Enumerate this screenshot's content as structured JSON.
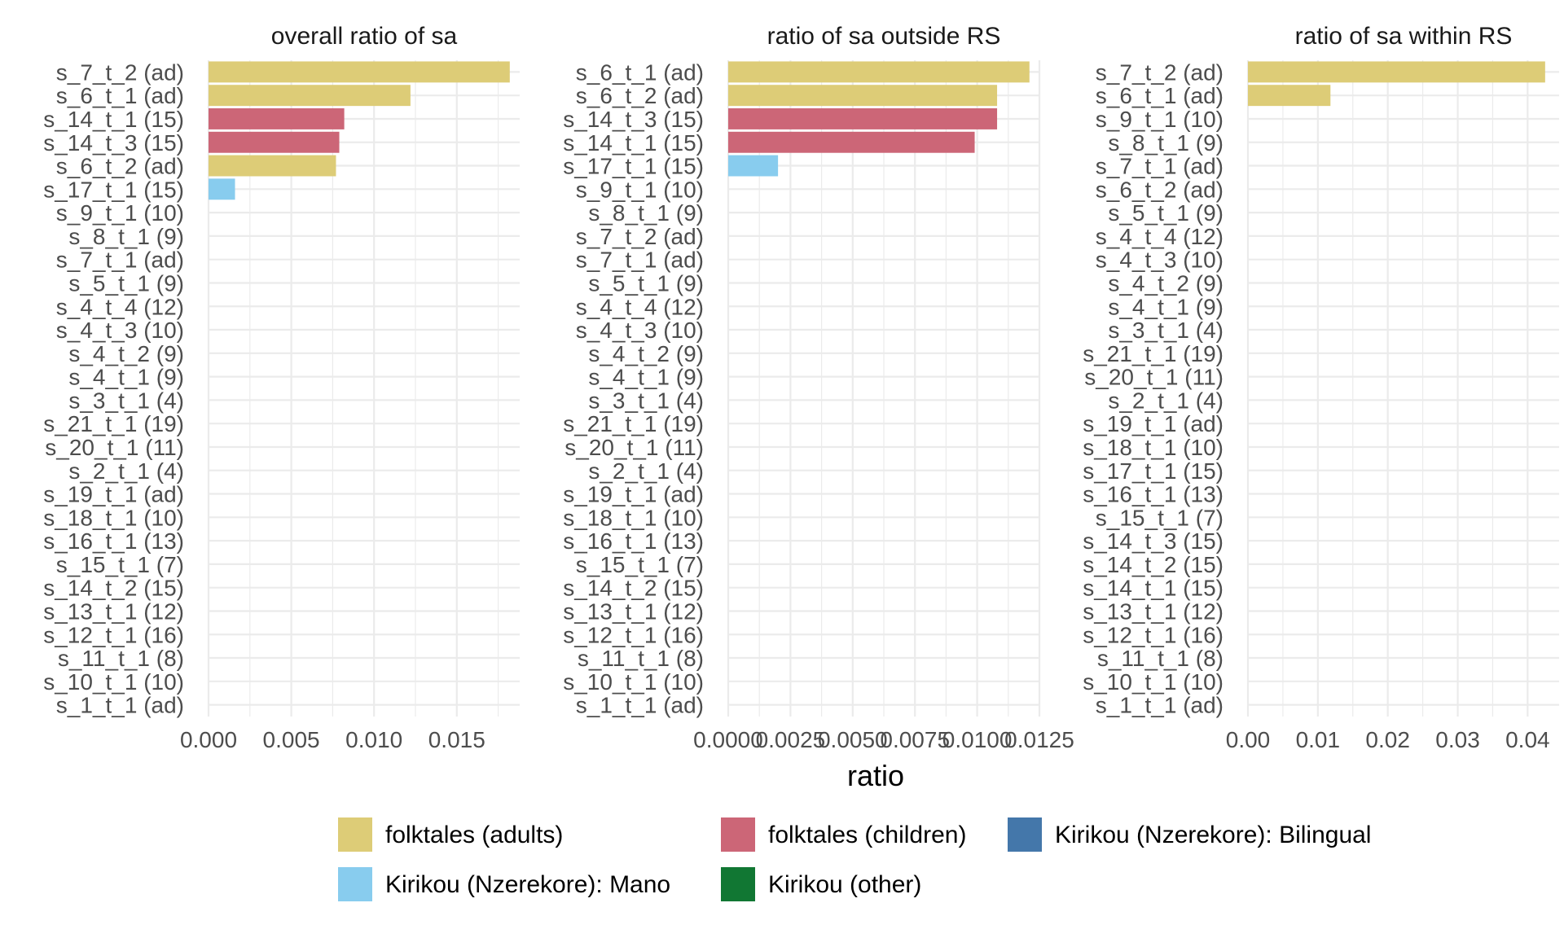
{
  "colors": {
    "folktales (adults)": "#DDCC77",
    "folktales (children)": "#CC6677",
    "Kirikou (Nzerekore): Bilingual": "#4477AA",
    "Kirikou (Nzerekore): Mano": "#88CCEE",
    "Kirikou (other)": "#117733"
  },
  "x_axis_title": "ratio",
  "legend": {
    "position": "bottom",
    "items": [
      "folktales (adults)",
      "folktales (children)",
      "Kirikou (Nzerekore): Bilingual",
      "Kirikou (Nzerekore): Mano",
      "Kirikou (other)"
    ]
  },
  "chart_data": [
    {
      "type": "bar",
      "orientation": "horizontal",
      "title": "overall ratio of sa",
      "xlabel": "ratio",
      "xlim": [
        0,
        0.0188
      ],
      "xticks": [
        0,
        0.005,
        0.01,
        0.015
      ],
      "xtick_labels": [
        "0.000",
        "0.005",
        "0.010",
        "0.015"
      ],
      "categories": [
        "s_7_t_2 (ad)",
        "s_6_t_1 (ad)",
        "s_14_t_1 (15)",
        "s_14_t_3 (15)",
        "s_6_t_2 (ad)",
        "s_17_t_1 (15)",
        "s_9_t_1 (10)",
        "s_8_t_1 (9)",
        "s_7_t_1 (ad)",
        "s_5_t_1 (9)",
        "s_4_t_4 (12)",
        "s_4_t_3 (10)",
        "s_4_t_2 (9)",
        "s_4_t_1 (9)",
        "s_3_t_1 (4)",
        "s_21_t_1 (19)",
        "s_20_t_1 (11)",
        "s_2_t_1 (4)",
        "s_19_t_1 (ad)",
        "s_18_t_1 (10)",
        "s_16_t_1 (13)",
        "s_15_t_1 (7)",
        "s_14_t_2 (15)",
        "s_13_t_1 (12)",
        "s_12_t_1 (16)",
        "s_11_t_1 (8)",
        "s_10_t_1 (10)",
        "s_1_t_1 (ad)"
      ],
      "values": [
        0.0182,
        0.0122,
        0.0082,
        0.0079,
        0.0077,
        0.0016,
        0,
        0,
        0,
        0,
        0,
        0,
        0,
        0,
        0,
        0,
        0,
        0,
        0,
        0,
        0,
        0,
        0,
        0,
        0,
        0,
        0,
        0
      ],
      "groups": [
        "folktales (adults)",
        "folktales (adults)",
        "folktales (children)",
        "folktales (children)",
        "folktales (adults)",
        "Kirikou (Nzerekore): Mano",
        "",
        "",
        "",
        "",
        "",
        "",
        "",
        "",
        "",
        "",
        "",
        "",
        "",
        "",
        "",
        "",
        "",
        "",
        "",
        "",
        "",
        ""
      ],
      "grid": true
    },
    {
      "type": "bar",
      "orientation": "horizontal",
      "title": "ratio of sa outside RS",
      "xlabel": "ratio",
      "xlim": [
        0,
        0.0125
      ],
      "xticks": [
        0,
        0.0025,
        0.005,
        0.0075,
        0.01,
        0.0125
      ],
      "xtick_labels": [
        "0.0000",
        "0.0025",
        "0.0050",
        "0.0075",
        "0.0100",
        "0.0125"
      ],
      "categories": [
        "s_6_t_1 (ad)",
        "s_6_t_2 (ad)",
        "s_14_t_3 (15)",
        "s_14_t_1 (15)",
        "s_17_t_1 (15)",
        "s_9_t_1 (10)",
        "s_8_t_1 (9)",
        "s_7_t_2 (ad)",
        "s_7_t_1 (ad)",
        "s_5_t_1 (9)",
        "s_4_t_4 (12)",
        "s_4_t_3 (10)",
        "s_4_t_2 (9)",
        "s_4_t_1 (9)",
        "s_3_t_1 (4)",
        "s_21_t_1 (19)",
        "s_20_t_1 (11)",
        "s_2_t_1 (4)",
        "s_19_t_1 (ad)",
        "s_18_t_1 (10)",
        "s_16_t_1 (13)",
        "s_15_t_1 (7)",
        "s_14_t_2 (15)",
        "s_13_t_1 (12)",
        "s_12_t_1 (16)",
        "s_11_t_1 (8)",
        "s_10_t_1 (10)",
        "s_1_t_1 (ad)"
      ],
      "values": [
        0.0121,
        0.0108,
        0.0108,
        0.0099,
        0.002,
        0,
        0,
        0,
        0,
        0,
        0,
        0,
        0,
        0,
        0,
        0,
        0,
        0,
        0,
        0,
        0,
        0,
        0,
        0,
        0,
        0,
        0,
        0
      ],
      "groups": [
        "folktales (adults)",
        "folktales (adults)",
        "folktales (children)",
        "folktales (children)",
        "Kirikou (Nzerekore): Mano",
        "",
        "",
        "",
        "",
        "",
        "",
        "",
        "",
        "",
        "",
        "",
        "",
        "",
        "",
        "",
        "",
        "",
        "",
        "",
        "",
        "",
        "",
        ""
      ],
      "grid": true
    },
    {
      "type": "bar",
      "orientation": "horizontal",
      "title": "ratio of sa within RS",
      "xlabel": "ratio",
      "xlim": [
        0,
        0.0445
      ],
      "xticks": [
        0,
        0.01,
        0.02,
        0.03,
        0.04
      ],
      "xtick_labels": [
        "0.00",
        "0.01",
        "0.02",
        "0.03",
        "0.04"
      ],
      "categories": [
        "s_7_t_2 (ad)",
        "s_6_t_1 (ad)",
        "s_9_t_1 (10)",
        "s_8_t_1 (9)",
        "s_7_t_1 (ad)",
        "s_6_t_2 (ad)",
        "s_5_t_1 (9)",
        "s_4_t_4 (12)",
        "s_4_t_3 (10)",
        "s_4_t_2 (9)",
        "s_4_t_1 (9)",
        "s_3_t_1 (4)",
        "s_21_t_1 (19)",
        "s_20_t_1 (11)",
        "s_2_t_1 (4)",
        "s_19_t_1 (ad)",
        "s_18_t_1 (10)",
        "s_17_t_1 (15)",
        "s_16_t_1 (13)",
        "s_15_t_1 (7)",
        "s_14_t_3 (15)",
        "s_14_t_2 (15)",
        "s_14_t_1 (15)",
        "s_13_t_1 (12)",
        "s_12_t_1 (16)",
        "s_11_t_1 (8)",
        "s_10_t_1 (10)",
        "s_1_t_1 (ad)"
      ],
      "values": [
        0.0425,
        0.0118,
        0,
        0,
        0,
        0,
        0,
        0,
        0,
        0,
        0,
        0,
        0,
        0,
        0,
        0,
        0,
        0,
        0,
        0,
        0,
        0,
        0,
        0,
        0,
        0,
        0,
        0
      ],
      "groups": [
        "folktales (adults)",
        "folktales (adults)",
        "",
        "",
        "",
        "",
        "",
        "",
        "",
        "",
        "",
        "",
        "",
        "",
        "",
        "",
        "",
        "",
        "",
        "",
        "",
        "",
        "",
        "",
        "",
        "",
        "",
        ""
      ],
      "grid": true
    }
  ]
}
